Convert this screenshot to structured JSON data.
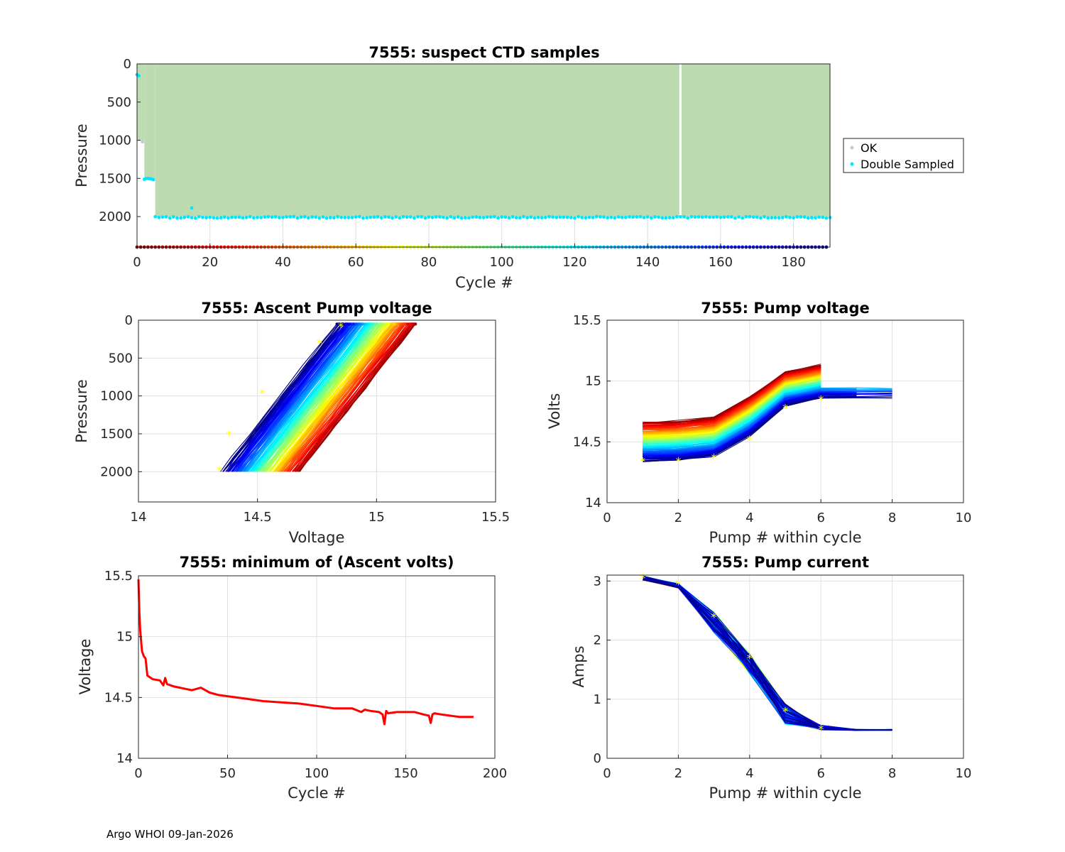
{
  "footer": "Argo WHOI 09-Jan-2026",
  "chart_data": [
    {
      "id": "ctd",
      "type": "scatter",
      "title": "7555: suspect CTD samples",
      "xlabel": "Cycle #",
      "ylabel": "Pressure",
      "xlim": [
        0,
        190
      ],
      "ylim": [
        2400,
        0
      ],
      "xticks": [
        0,
        20,
        40,
        60,
        80,
        100,
        120,
        140,
        160,
        180
      ],
      "yticks": [
        0,
        500,
        1000,
        1500,
        2000
      ],
      "legend": {
        "position": "outside-right",
        "entries": [
          {
            "label": "OK",
            "color": "#c8c8c8"
          },
          {
            "label": "Double Sampled",
            "color": "#00e6ff"
          }
        ]
      },
      "ok_fill_color": "#bcdbb0",
      "gap_cycle": 149,
      "double_sampled": [
        {
          "cycles": [
            0,
            0.6
          ],
          "pressure": 150
        },
        {
          "cycles": [
            2,
            4.5
          ],
          "pressure": 1510
        },
        {
          "cycles": [
            5,
            190
          ],
          "pressure": 2010
        },
        {
          "cycles": [
            15,
            15
          ],
          "pressure": 1890
        }
      ],
      "cycle_color_row_pressure": 2400
    },
    {
      "id": "ascent",
      "type": "line",
      "title": "7555: Ascent Pump voltage",
      "xlabel": "Voltage",
      "ylabel": "Pressure",
      "xlim": [
        14,
        15.5
      ],
      "ylim": [
        2400,
        0
      ],
      "xticks": [
        14,
        14.5,
        15,
        15.5
      ],
      "yticks": [
        0,
        500,
        1000,
        1500,
        2000
      ],
      "series_count": 188,
      "median_points": [
        [
          14.34,
          1980
        ],
        [
          14.38,
          1510
        ],
        [
          14.52,
          960
        ],
        [
          14.76,
          300
        ],
        [
          14.85,
          80
        ]
      ]
    },
    {
      "id": "pumpv",
      "type": "line",
      "title": "7555: Pump voltage",
      "xlabel": "Pump # within cycle",
      "ylabel": "Volts",
      "xlim": [
        0,
        10
      ],
      "ylim": [
        14,
        15.5
      ],
      "xticks": [
        0,
        2,
        4,
        6,
        8,
        10
      ],
      "yticks": [
        14,
        14.5,
        15,
        15.5
      ],
      "series_count": 188,
      "median_points": [
        [
          1,
          14.34
        ],
        [
          2,
          14.34
        ],
        [
          3,
          14.37
        ],
        [
          4,
          14.52
        ],
        [
          5,
          14.78
        ],
        [
          6,
          14.85
        ]
      ]
    },
    {
      "id": "minv",
      "type": "line",
      "title": "7555: minimum of (Ascent volts)",
      "xlabel": "Cycle #",
      "ylabel": "Voltage",
      "xlim": [
        0,
        200
      ],
      "ylim": [
        14,
        15.5
      ],
      "xticks": [
        0,
        50,
        100,
        150,
        200
      ],
      "yticks": [
        14,
        14.5,
        15,
        15.5
      ],
      "color": "#ff0000",
      "x": [
        0,
        0.5,
        1,
        2,
        3,
        4,
        5,
        8,
        12,
        14,
        15,
        16,
        20,
        30,
        35,
        40,
        45,
        50,
        60,
        70,
        80,
        90,
        100,
        110,
        120,
        125,
        127,
        130,
        135,
        137,
        138,
        139,
        140,
        145,
        150,
        155,
        160,
        163,
        164,
        165,
        166,
        170,
        175,
        180,
        188
      ],
      "y": [
        15.47,
        15.2,
        15.05,
        14.88,
        14.84,
        14.82,
        14.68,
        14.65,
        14.64,
        14.6,
        14.66,
        14.61,
        14.59,
        14.56,
        14.58,
        14.54,
        14.52,
        14.51,
        14.49,
        14.47,
        14.46,
        14.45,
        14.43,
        14.41,
        14.41,
        14.38,
        14.4,
        14.39,
        14.38,
        14.36,
        14.28,
        14.39,
        14.37,
        14.38,
        14.38,
        14.38,
        14.36,
        14.35,
        14.29,
        14.36,
        14.37,
        14.36,
        14.35,
        14.34,
        14.34
      ]
    },
    {
      "id": "pumpc",
      "type": "line",
      "title": "7555: Pump current",
      "xlabel": "Pump # within cycle",
      "ylabel": "Amps",
      "xlim": [
        0,
        10
      ],
      "ylim": [
        0,
        3.1
      ],
      "xticks": [
        0,
        2,
        4,
        6,
        8,
        10
      ],
      "yticks": [
        0,
        1,
        2,
        3
      ],
      "series_count": 188,
      "median_points": [
        [
          1,
          3.05
        ],
        [
          2,
          2.95
        ],
        [
          3,
          2.4
        ],
        [
          4,
          1.7
        ],
        [
          5,
          0.8
        ],
        [
          6,
          0.5
        ]
      ]
    }
  ]
}
